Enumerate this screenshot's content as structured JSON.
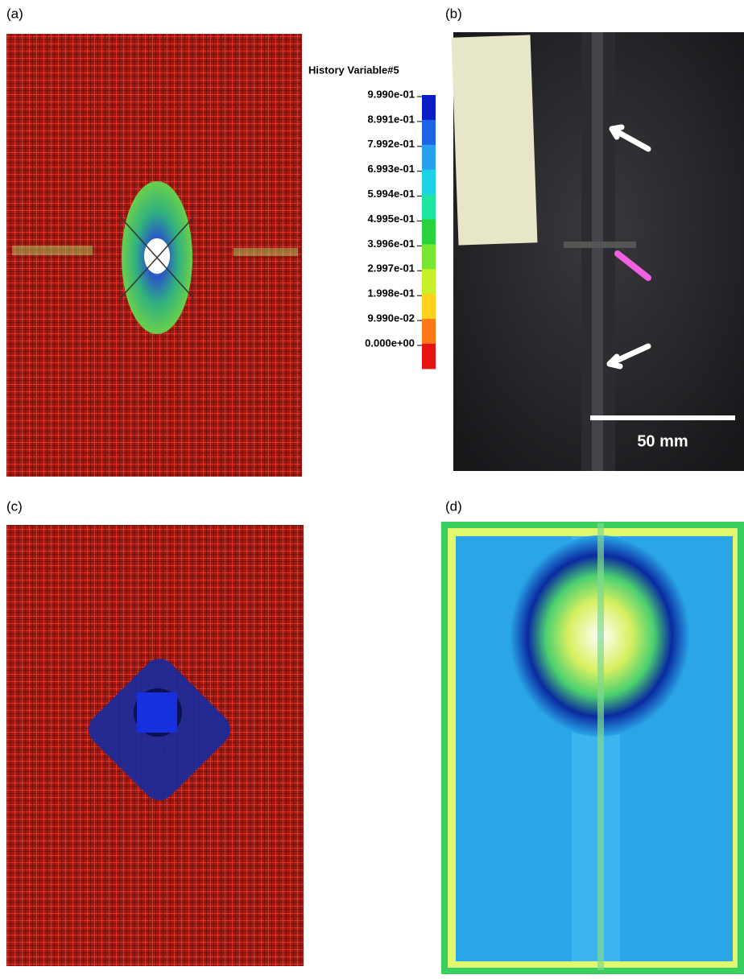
{
  "panels": [
    {
      "label": "(a)"
    },
    {
      "label": "(b)"
    },
    {
      "label": "(c)"
    },
    {
      "label": "(d)"
    }
  ],
  "legend": {
    "title": "History Variable#5",
    "ticks": [
      {
        "label": "9.990e-01",
        "color": "#0a1ec8"
      },
      {
        "label": "8.991e-01",
        "color": "#1e64e6"
      },
      {
        "label": "7.992e-01",
        "color": "#28a0f0"
      },
      {
        "label": "6.993e-01",
        "color": "#1ed2e6"
      },
      {
        "label": "5.994e-01",
        "color": "#1ee6a0"
      },
      {
        "label": "4.995e-01",
        "color": "#28d23c"
      },
      {
        "label": "3.996e-01",
        "color": "#78e632"
      },
      {
        "label": "2.997e-01",
        "color": "#c8f028"
      },
      {
        "label": "1.998e-01",
        "color": "#ffd21e"
      },
      {
        "label": "9.990e-02",
        "color": "#ff7814"
      },
      {
        "label": "0.000e+00",
        "color": "#e61414"
      }
    ]
  },
  "scale_bar": {
    "label": "50 mm"
  }
}
